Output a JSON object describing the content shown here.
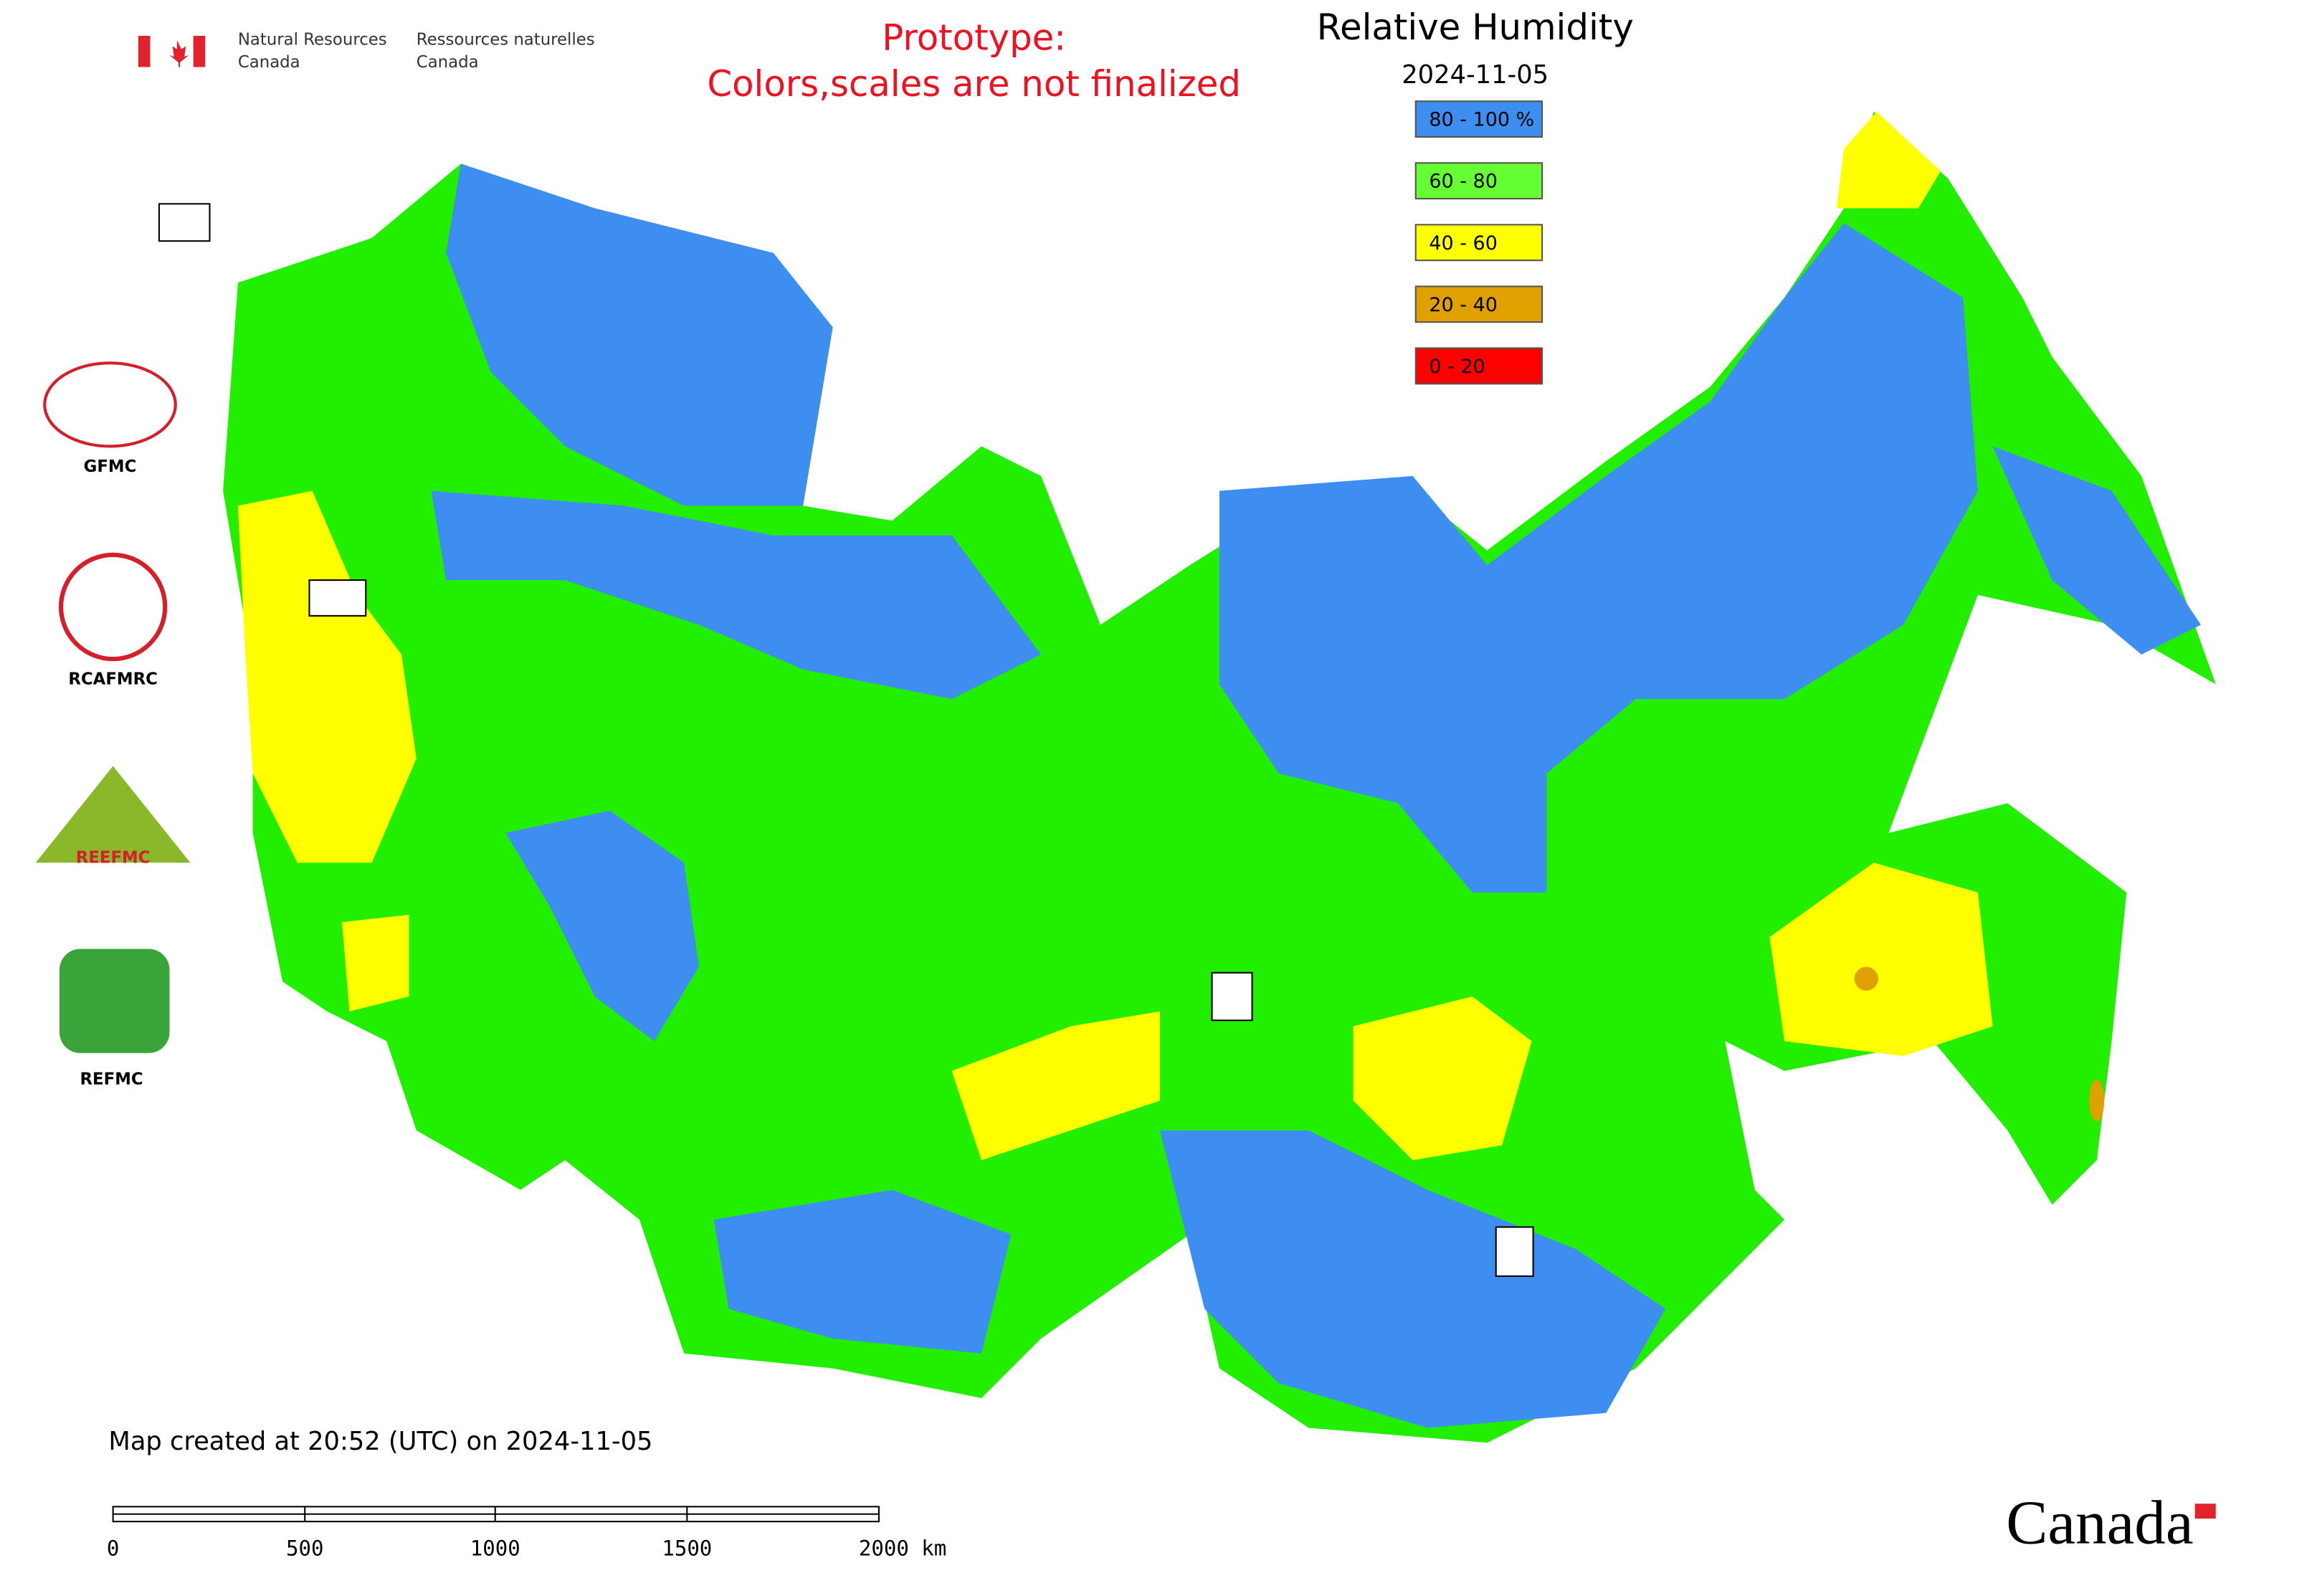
{
  "header": {
    "agency_en": [
      "Natural Resources",
      "Canada"
    ],
    "agency_fr": [
      "Ressources naturelles",
      "Canada"
    ]
  },
  "notice": [
    "Prototype:",
    "Colors,scales are not finalized"
  ],
  "title": "Relative Humidity",
  "date": "2024-11-05",
  "legend": [
    {
      "label": "80 - 100 %",
      "color": "#3d8ef0"
    },
    {
      "label": "60 - 80",
      "color": "#66ff33"
    },
    {
      "label": "40 - 60",
      "color": "#ffff00"
    },
    {
      "label": "20 - 40",
      "color": "#e0a000"
    },
    {
      "label": "0 - 20",
      "color": "#ff0000"
    }
  ],
  "organizations": [
    "GFMC",
    "RCAFMRC",
    "REEFMC",
    "REFMC"
  ],
  "footer": {
    "created": "Map created at 20:52 (UTC) on 2024-11-05",
    "scale_labels": [
      "0",
      "500",
      "1000",
      "1500",
      "2000 km"
    ],
    "wordmark": "Canada"
  }
}
